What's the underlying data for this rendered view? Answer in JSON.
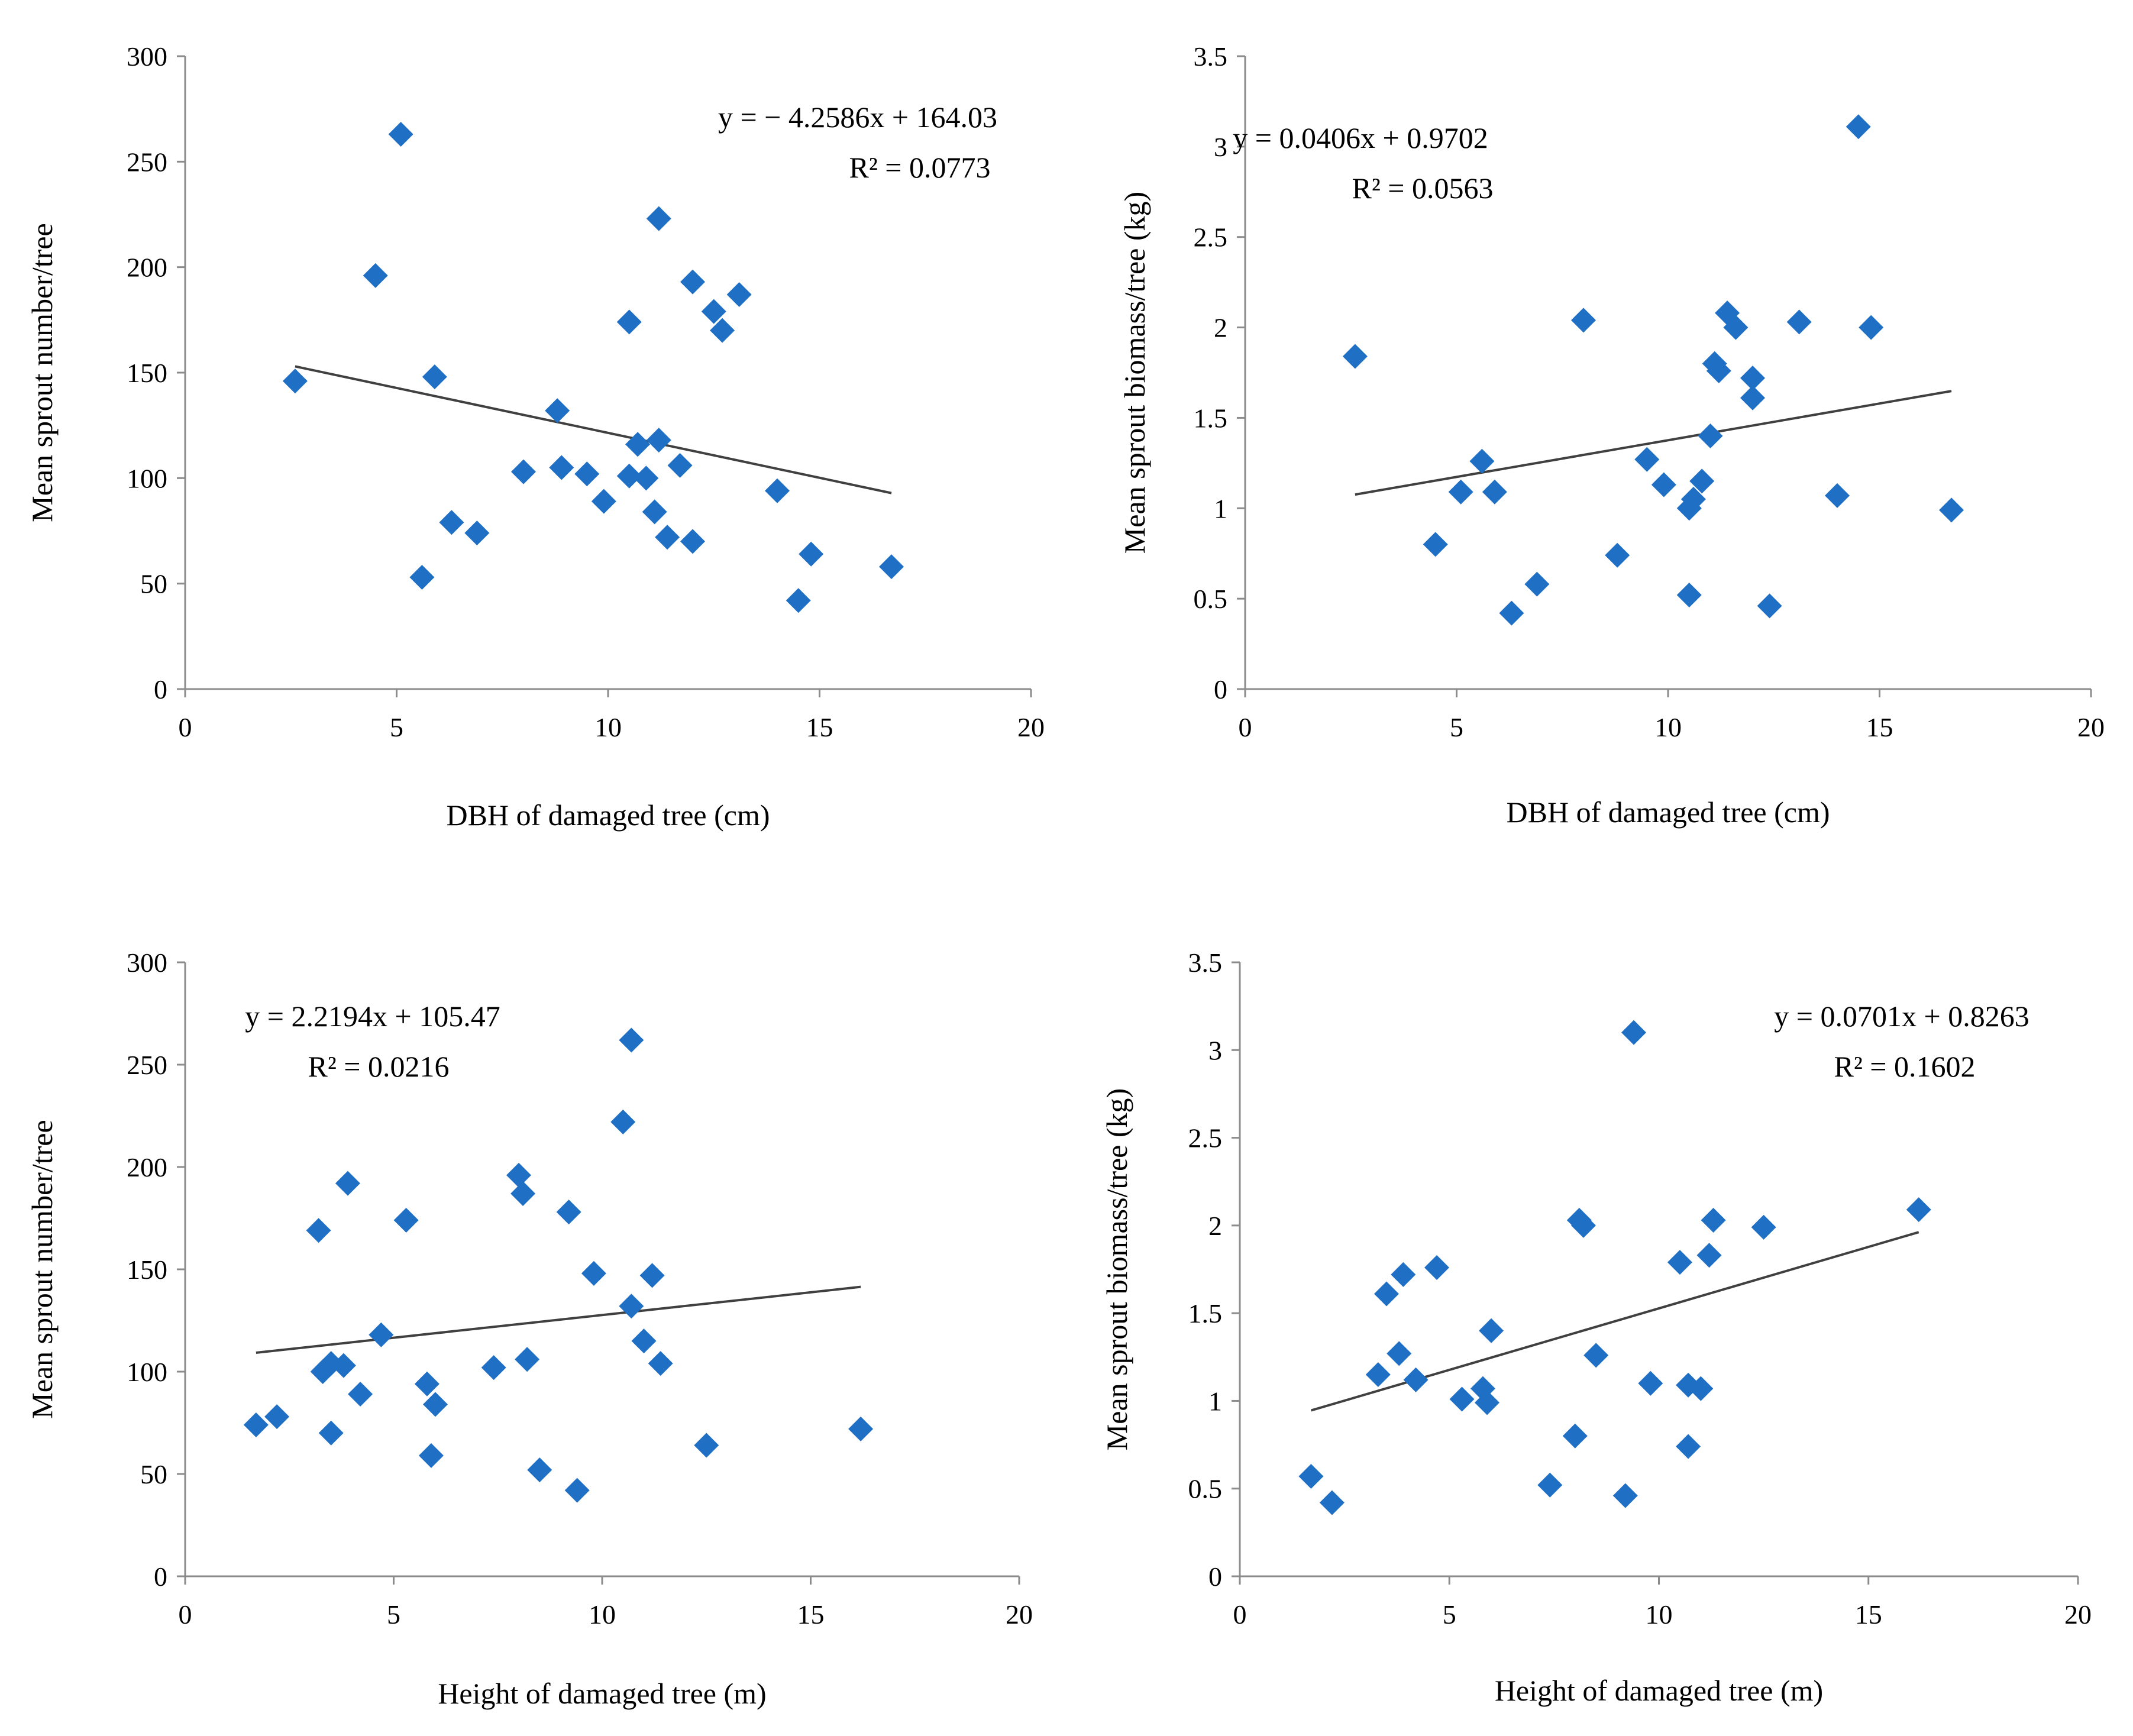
{
  "chart_data": [
    {
      "type": "scatter",
      "id": "a",
      "xlabel": "DBH of damaged tree (cm)",
      "ylabel": "Mean sprout number/tree",
      "xlim": [
        0,
        20
      ],
      "ylim": [
        0,
        300
      ],
      "xticks": [
        0,
        5,
        10,
        15,
        20
      ],
      "yticks": [
        0,
        50,
        100,
        150,
        200,
        250,
        300
      ],
      "yticklabels": [
        "0",
        "50",
        "100",
        "150",
        "200",
        "250",
        "300"
      ],
      "equation": "y = − 4.2586x + 164.03",
      "r2_text": "R² = 0.0773",
      "equation_position": "top-right",
      "trend": {
        "x": [
          2.6,
          16.7
        ],
        "slope": -4.2586,
        "intercept": 164.03
      },
      "marker_color": "#1f6fc5",
      "points": [
        [
          2.6,
          146
        ],
        [
          4.5,
          196
        ],
        [
          5.1,
          263
        ],
        [
          5.6,
          53
        ],
        [
          5.9,
          148
        ],
        [
          6.3,
          79
        ],
        [
          6.9,
          74
        ],
        [
          8.0,
          103
        ],
        [
          8.8,
          132
        ],
        [
          8.9,
          105
        ],
        [
          9.5,
          102
        ],
        [
          9.9,
          89
        ],
        [
          10.5,
          174
        ],
        [
          10.5,
          101
        ],
        [
          10.7,
          116
        ],
        [
          10.9,
          100
        ],
        [
          11.1,
          84
        ],
        [
          11.2,
          223
        ],
        [
          11.2,
          118
        ],
        [
          11.4,
          72
        ],
        [
          11.7,
          106
        ],
        [
          12.0,
          193
        ],
        [
          12.0,
          70
        ],
        [
          12.5,
          179
        ],
        [
          12.7,
          170
        ],
        [
          13.1,
          187
        ],
        [
          14.0,
          94
        ],
        [
          14.5,
          42
        ],
        [
          14.8,
          64
        ],
        [
          16.7,
          58
        ]
      ]
    },
    {
      "type": "scatter",
      "id": "b",
      "xlabel": "DBH of damaged tree (cm)",
      "ylabel": "Mean sprout biomass/tree (kg)",
      "xlim": [
        0,
        20
      ],
      "ylim": [
        0,
        3.5
      ],
      "xticks": [
        0,
        5,
        10,
        15,
        20
      ],
      "yticks": [
        0,
        0.5,
        1,
        1.5,
        2,
        2.5,
        3,
        3.5
      ],
      "yticklabels": [
        "0",
        "0.5",
        "1",
        "1.5",
        "2",
        "2.5",
        "3",
        "3.5"
      ],
      "equation": "y = 0.0406x + 0.9702",
      "r2_text": "R² = 0.0563",
      "equation_position": "top-left",
      "trend": {
        "x": [
          2.6,
          16.7
        ],
        "slope": 0.0406,
        "intercept": 0.9702
      },
      "marker_color": "#1f6fc5",
      "points": [
        [
          2.6,
          1.84
        ],
        [
          4.5,
          0.8
        ],
        [
          5.1,
          1.09
        ],
        [
          5.6,
          1.26
        ],
        [
          5.9,
          1.09
        ],
        [
          6.3,
          0.42
        ],
        [
          6.9,
          0.58
        ],
        [
          8.0,
          2.04
        ],
        [
          8.8,
          0.74
        ],
        [
          9.5,
          1.27
        ],
        [
          9.9,
          1.13
        ],
        [
          10.5,
          1.0
        ],
        [
          10.5,
          0.52
        ],
        [
          10.6,
          1.05
        ],
        [
          10.8,
          1.15
        ],
        [
          11.0,
          1.4
        ],
        [
          11.1,
          1.8
        ],
        [
          11.2,
          1.76
        ],
        [
          11.4,
          2.08
        ],
        [
          11.6,
          2.0
        ],
        [
          12.0,
          1.72
        ],
        [
          12.0,
          1.61
        ],
        [
          12.4,
          0.46
        ],
        [
          13.1,
          2.03
        ],
        [
          14.0,
          1.07
        ],
        [
          14.5,
          3.11
        ],
        [
          14.8,
          2.0
        ],
        [
          16.7,
          0.99
        ]
      ]
    },
    {
      "type": "scatter",
      "id": "c",
      "xlabel": "Height of damaged tree (m)",
      "ylabel": "Mean sprout number/tree",
      "xlim": [
        0,
        20
      ],
      "ylim": [
        0,
        300
      ],
      "xticks": [
        0,
        5,
        10,
        15,
        20
      ],
      "yticks": [
        0,
        50,
        100,
        150,
        200,
        250,
        300
      ],
      "yticklabels": [
        "0",
        "50",
        "100",
        "150",
        "200",
        "250",
        "300"
      ],
      "equation": "y = 2.2194x + 105.47",
      "r2_text": "R² = 0.0216",
      "equation_position": "top-left",
      "trend": {
        "x": [
          1.7,
          16.2
        ],
        "slope": 2.2194,
        "intercept": 105.47
      },
      "marker_color": "#1f6fc5",
      "points": [
        [
          1.7,
          74
        ],
        [
          2.2,
          78
        ],
        [
          3.2,
          169
        ],
        [
          3.3,
          100
        ],
        [
          3.5,
          104
        ],
        [
          3.5,
          70
        ],
        [
          3.8,
          103
        ],
        [
          3.9,
          192
        ],
        [
          4.2,
          89
        ],
        [
          4.7,
          118
        ],
        [
          5.3,
          174
        ],
        [
          5.8,
          94
        ],
        [
          5.9,
          59
        ],
        [
          6.0,
          84
        ],
        [
          7.4,
          102
        ],
        [
          8.0,
          196
        ],
        [
          8.1,
          187
        ],
        [
          8.2,
          106
        ],
        [
          8.5,
          52
        ],
        [
          9.2,
          178
        ],
        [
          9.4,
          42
        ],
        [
          9.8,
          148
        ],
        [
          10.5,
          222
        ],
        [
          10.7,
          262
        ],
        [
          10.7,
          132
        ],
        [
          11.0,
          115
        ],
        [
          11.2,
          147
        ],
        [
          11.4,
          104
        ],
        [
          12.5,
          64
        ],
        [
          16.2,
          72
        ]
      ]
    },
    {
      "type": "scatter",
      "id": "d",
      "xlabel": "Height of damaged tree (m)",
      "ylabel": "Mean sprout biomass/tree (kg)",
      "xlim": [
        0,
        20
      ],
      "ylim": [
        0,
        3.5
      ],
      "xticks": [
        0,
        5,
        10,
        15,
        20
      ],
      "yticks": [
        0,
        0.5,
        1,
        1.5,
        2,
        2.5,
        3,
        3.5
      ],
      "yticklabels": [
        "0",
        "0.5",
        "1",
        "1.5",
        "2",
        "2.5",
        "3",
        "3.5"
      ],
      "equation": "y = 0.0701x + 0.8263",
      "r2_text": "R² = 0.1602",
      "equation_position": "top-right",
      "trend": {
        "x": [
          1.7,
          16.2
        ],
        "slope": 0.0701,
        "intercept": 0.8263
      },
      "marker_color": "#1f6fc5",
      "points": [
        [
          1.7,
          0.57
        ],
        [
          2.2,
          0.42
        ],
        [
          3.3,
          1.15
        ],
        [
          3.5,
          1.61
        ],
        [
          3.8,
          1.27
        ],
        [
          3.9,
          1.72
        ],
        [
          4.2,
          1.12
        ],
        [
          4.7,
          1.76
        ],
        [
          5.3,
          1.01
        ],
        [
          5.8,
          1.07
        ],
        [
          5.9,
          0.99
        ],
        [
          6.0,
          1.4
        ],
        [
          7.4,
          0.52
        ],
        [
          8.0,
          0.8
        ],
        [
          8.1,
          2.03
        ],
        [
          8.2,
          2.0
        ],
        [
          8.5,
          1.26
        ],
        [
          9.2,
          0.46
        ],
        [
          9.4,
          3.1
        ],
        [
          9.8,
          1.1
        ],
        [
          10.5,
          1.79
        ],
        [
          10.7,
          1.09
        ],
        [
          10.7,
          0.74
        ],
        [
          11.0,
          1.07
        ],
        [
          11.2,
          1.83
        ],
        [
          11.3,
          2.03
        ],
        [
          12.5,
          1.99
        ],
        [
          16.2,
          2.09
        ]
      ]
    }
  ]
}
